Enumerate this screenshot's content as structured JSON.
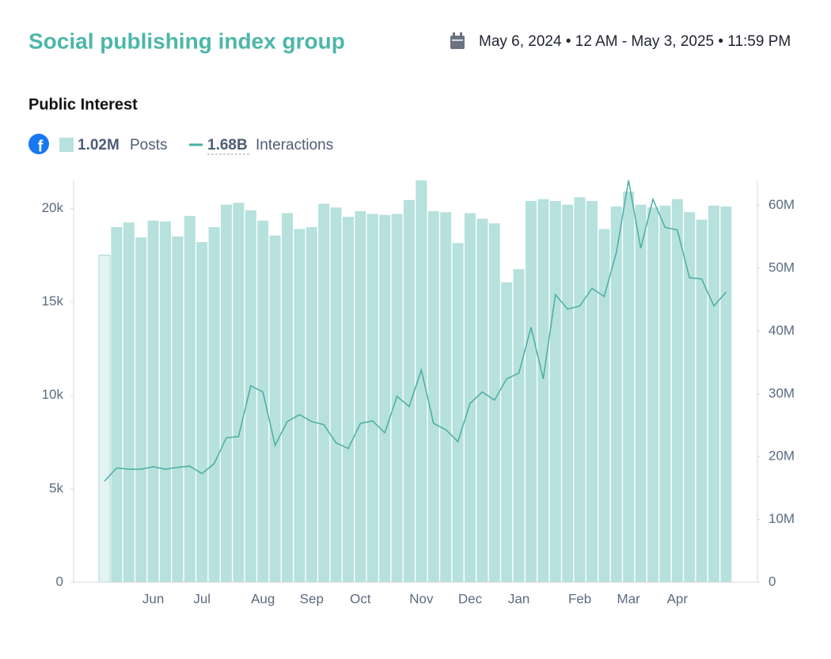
{
  "header": {
    "title": "Social publishing index group",
    "date_range": "May 6, 2024 • 12 AM - May 3, 2025 • 11:59 PM"
  },
  "chart_data": {
    "type": "bar-line",
    "title": "Public Interest",
    "categories": [
      null,
      null,
      null,
      null,
      "Jun",
      null,
      null,
      null,
      "Jul",
      null,
      null,
      null,
      null,
      "Aug",
      null,
      null,
      null,
      "Sep",
      null,
      null,
      null,
      "Oct",
      null,
      null,
      null,
      null,
      "Nov",
      null,
      null,
      null,
      "Dec",
      null,
      null,
      null,
      "Jan",
      null,
      null,
      null,
      null,
      "Feb",
      null,
      null,
      null,
      "Mar",
      null,
      null,
      null,
      "Apr",
      null,
      null,
      null,
      null
    ],
    "series": [
      {
        "name": "Posts",
        "total_label": "1.02M",
        "color": "#b6e1dd",
        "values": [
          17500,
          19000,
          19250,
          18450,
          19350,
          19300,
          18500,
          19600,
          18200,
          19000,
          20200,
          20300,
          19900,
          19350,
          18550,
          19750,
          18900,
          19000,
          20250,
          20050,
          19550,
          19850,
          19700,
          19650,
          19700,
          20450,
          21500,
          19850,
          19800,
          18150,
          19750,
          19450,
          19200,
          16050,
          16750,
          20400,
          20500,
          20400,
          20200,
          20600,
          20400,
          18900,
          20100,
          20900,
          20200,
          20050,
          20150,
          20500,
          19800,
          19400,
          20150,
          20100
        ]
      },
      {
        "name": "Interactions",
        "total_label": "1.68B",
        "color": "#4aaea3",
        "axis": "y2",
        "values": [
          16100000,
          18200000,
          18000000,
          18000000,
          18400000,
          18000000,
          18300000,
          18500000,
          17300000,
          18900000,
          23000000,
          23200000,
          31300000,
          30300000,
          21800000,
          25600000,
          26700000,
          25600000,
          25100000,
          22200000,
          21300000,
          25300000,
          25700000,
          23800000,
          29600000,
          28000000,
          33800000,
          25300000,
          24300000,
          22400000,
          28500000,
          30300000,
          29000000,
          32400000,
          33300000,
          40600000,
          32400000,
          45800000,
          43500000,
          44000000,
          46800000,
          45500000,
          52500000,
          64000000,
          53200000,
          61000000,
          56500000,
          56100000,
          48500000,
          48300000,
          44000000,
          46200000
        ]
      }
    ],
    "ylim": [
      0,
      21500
    ],
    "yticks": [
      0,
      {
        "value": 5000,
        "label": "5k"
      },
      {
        "value": 10000,
        "label": "10k"
      },
      {
        "value": 15000,
        "label": "15k"
      },
      {
        "value": 20000,
        "label": "20k"
      }
    ],
    "y2lim": [
      0,
      64000000
    ],
    "y2ticks": [
      0,
      {
        "value": 10000000,
        "label": "10M"
      },
      {
        "value": 20000000,
        "label": "20M"
      },
      {
        "value": 30000000,
        "label": "30M"
      },
      {
        "value": 40000000,
        "label": "40M"
      },
      {
        "value": 50000000,
        "label": "50M"
      },
      {
        "value": 60000000,
        "label": "60M"
      }
    ]
  }
}
